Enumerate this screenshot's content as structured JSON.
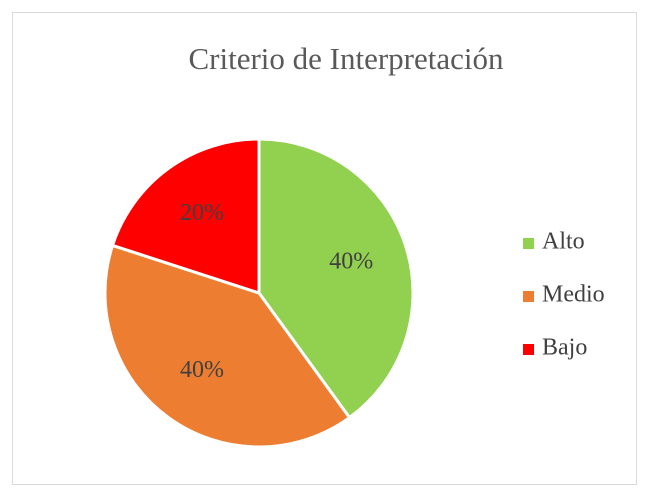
{
  "chart_data": {
    "type": "pie",
    "title": "Criterio de Interpretación",
    "categories": [
      "Alto",
      "Medio",
      "Bajo"
    ],
    "values": [
      40,
      40,
      20
    ],
    "value_labels": [
      "40%",
      "40%",
      "20%"
    ],
    "colors": [
      "#92d050",
      "#ed7d31",
      "#ff0000"
    ],
    "legend": "right"
  }
}
